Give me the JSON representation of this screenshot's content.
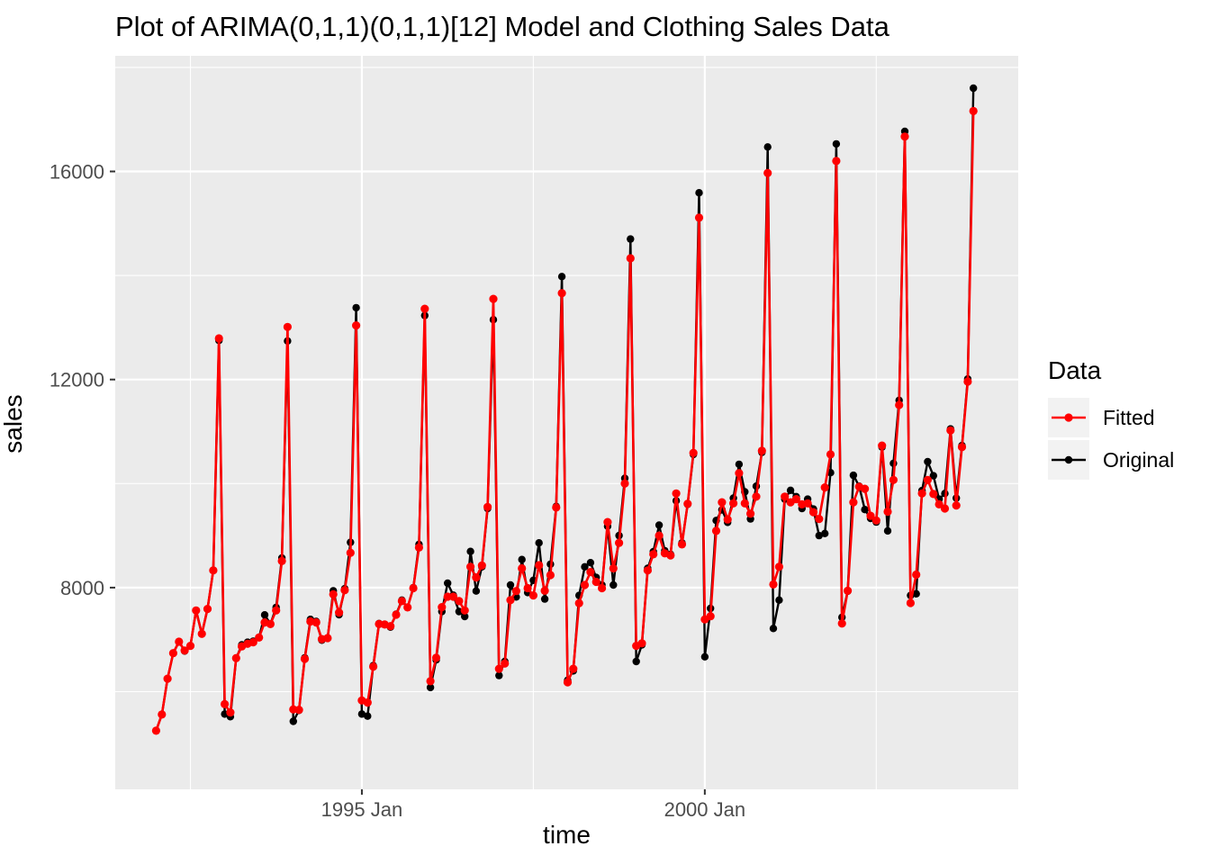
{
  "page": {
    "background": "#FFFFFF"
  },
  "chart_data": {
    "type": "line",
    "title": "Plot of ARIMA(0,1,1)(0,1,1)[12] Model and Clothing Sales Data",
    "xlabel": "time",
    "ylabel": "sales",
    "frequency": "monthly",
    "x_start": "1992-01",
    "x_end": "2003-12",
    "n_points": 144,
    "xlim": [
      1991.404,
      2004.57
    ],
    "ylim": [
      4123,
      18223
    ],
    "x_ticks": [
      {
        "t": 1995.0,
        "label": "1995 Jan"
      },
      {
        "t": 2000.0,
        "label": "2000 Jan"
      }
    ],
    "x_minor": [
      1992.5,
      1997.5,
      2002.5
    ],
    "y_ticks": [
      {
        "v": 8000,
        "label": "8000"
      },
      {
        "v": 12000,
        "label": "12000"
      },
      {
        "v": 16000,
        "label": "16000"
      }
    ],
    "y_minor": [
      6000,
      10000,
      14000,
      18000
    ],
    "grid": {
      "panel_bg": "#EBEBEB",
      "major": "#FFFFFF",
      "minor": "#FFFFFF",
      "tick_color": "#333333",
      "tick_label_color": "#4D4D4D"
    },
    "legend": {
      "title": "Data",
      "position": "right",
      "key_bg": "#F2F2F2",
      "entries": [
        {
          "label": "Fitted",
          "color": "#FF0000"
        },
        {
          "label": "Original",
          "color": "#000000"
        }
      ]
    },
    "series": [
      {
        "name": "Original",
        "color": "#000000",
        "values": [
          5250,
          5560,
          6250,
          6740,
          6960,
          6780,
          6880,
          7560,
          7110,
          7590,
          8330,
          12750,
          5570,
          5520,
          6640,
          6900,
          6950,
          6970,
          7040,
          7475,
          7300,
          7620,
          8570,
          12740,
          5430,
          5640,
          6650,
          7390,
          7350,
          6990,
          7030,
          7940,
          7480,
          7980,
          8870,
          13380,
          5570,
          5530,
          6500,
          7310,
          7290,
          7240,
          7490,
          7760,
          7620,
          8000,
          8830,
          13230,
          6080,
          6610,
          7540,
          8085,
          7855,
          7540,
          7445,
          8695,
          7935,
          8400,
          9520,
          13150,
          6310,
          6580,
          8050,
          7820,
          8540,
          7905,
          8140,
          8860,
          7780,
          8450,
          9560,
          13980,
          6220,
          6400,
          7850,
          8400,
          8480,
          8195,
          8050,
          9180,
          8050,
          9000,
          10100,
          14700,
          6580,
          6900,
          8370,
          8690,
          9200,
          8710,
          8640,
          9670,
          8860,
          9600,
          10560,
          15590,
          6670,
          7600,
          9290,
          9495,
          9255,
          9720,
          10370,
          9840,
          9320,
          9950,
          10600,
          16470,
          7215,
          7760,
          9700,
          9870,
          9750,
          9520,
          9700,
          9510,
          9000,
          9040,
          10210,
          16530,
          7430,
          7930,
          10160,
          9950,
          9500,
          9330,
          9260,
          10700,
          9090,
          10390,
          11600,
          16770,
          7850,
          7880,
          9865,
          10420,
          10150,
          9700,
          9810,
          11050,
          9720,
          10730,
          12010,
          17600
        ]
      },
      {
        "name": "Fitted",
        "color": "#FF0000",
        "values": [
          5250,
          5560,
          6250,
          6740,
          6960,
          6790,
          6880,
          7560,
          7110,
          7590,
          8330,
          12790,
          5760,
          5600,
          6645,
          6870,
          6920,
          6950,
          7040,
          7330,
          7300,
          7560,
          8510,
          13010,
          5660,
          5650,
          6630,
          7350,
          7330,
          7010,
          7030,
          7870,
          7520,
          7950,
          8670,
          13040,
          5830,
          5790,
          6480,
          7300,
          7290,
          7260,
          7480,
          7740,
          7620,
          7990,
          8770,
          13360,
          6200,
          6650,
          7625,
          7825,
          7825,
          7740,
          7560,
          8400,
          8195,
          8425,
          9550,
          13550,
          6440,
          6540,
          7760,
          7935,
          8370,
          7990,
          7850,
          8430,
          7940,
          8240,
          9540,
          13660,
          6180,
          6440,
          7700,
          8050,
          8300,
          8110,
          7990,
          9260,
          8370,
          8860,
          10000,
          14330,
          6880,
          6930,
          8330,
          8640,
          9000,
          8660,
          8620,
          9810,
          8830,
          9610,
          10590,
          15110,
          7390,
          7450,
          9090,
          9640,
          9310,
          9620,
          10200,
          9620,
          9420,
          9750,
          10630,
          15970,
          8060,
          8400,
          9750,
          9640,
          9700,
          9600,
          9620,
          9450,
          9320,
          9925,
          10560,
          16200,
          7310,
          7940,
          9640,
          9940,
          9900,
          9380,
          9290,
          10730,
          9460,
          10070,
          11510,
          16670,
          7705,
          8250,
          9810,
          10070,
          9800,
          9600,
          9520,
          11020,
          9580,
          10700,
          11960,
          17160
        ]
      }
    ]
  }
}
